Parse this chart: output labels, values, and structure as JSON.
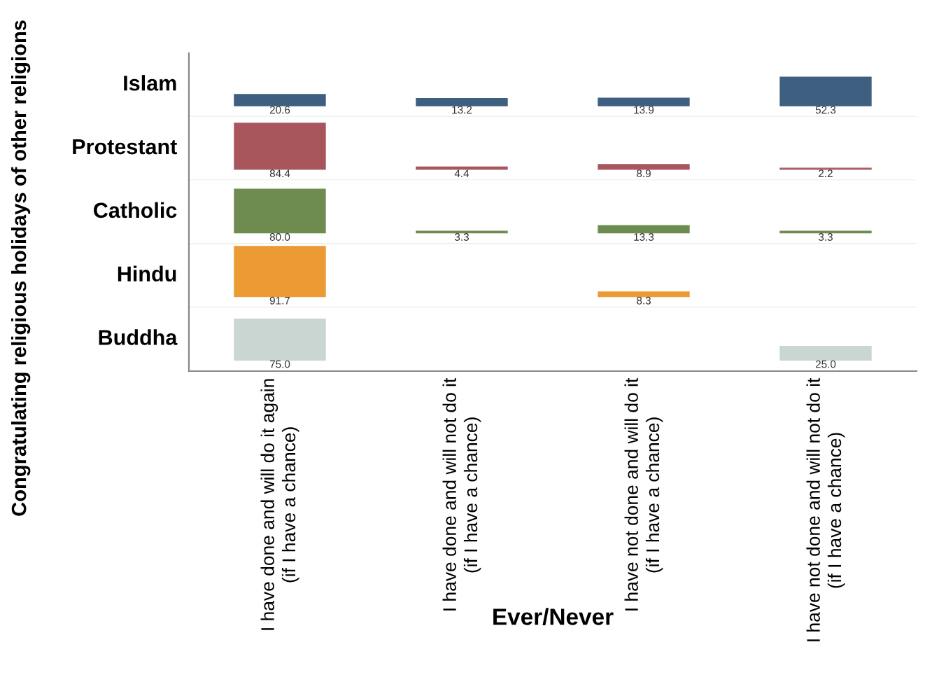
{
  "chart_data": [
    {
      "type": "bar",
      "ylabel": "Islam",
      "categories": [
        null,
        null,
        null,
        null
      ],
      "values": [
        20.6,
        13.2,
        13.9,
        52.3
      ],
      "value_labels": [
        "20.6",
        "13.2",
        "13.9",
        "52.3"
      ],
      "color": "#3e5f80",
      "tick_labels": false,
      "annotations": [
        "Congratulating religious holidays of other religions"
      ]
    },
    {
      "type": "bar",
      "ylabel": "Protestant",
      "categories": [
        null,
        null,
        null,
        null
      ],
      "values": [
        84.4,
        4.4,
        8.9,
        2.2
      ],
      "value_labels": [
        "84.4",
        "4.4",
        "8.9",
        "2.2"
      ],
      "color": "#a8565c",
      "tick_labels": false
    },
    {
      "type": "bar",
      "ylabel": "Catholic",
      "categories": [
        null,
        null,
        null,
        null
      ],
      "values": [
        80.0,
        3.3,
        13.3,
        3.3
      ],
      "value_labels": [
        "80.0",
        "3.3",
        "13.3",
        "3.3"
      ],
      "color": "#6e8c4f",
      "tick_labels": false
    },
    {
      "type": "bar",
      "ylabel": "Hindu",
      "categories": [
        null,
        null,
        null,
        null
      ],
      "values": [
        91.7,
        null,
        8.3,
        null
      ],
      "value_labels": [
        "91.7",
        null,
        "8.3",
        null
      ],
      "color": "#ec9a33",
      "tick_labels": false
    },
    {
      "type": "bar",
      "ylabel": "Buddha",
      "xlabel": "Ever/Never",
      "categories": [
        "I have done and will do it again\n(if I have a chance)",
        "I have done and will not do it\n(if I have a chance)",
        "I have not done and will do it\n(if I have a chance)",
        "I have not done and will not do it\n(if I have a chance)"
      ],
      "values": [
        75.0,
        null,
        null,
        25.0
      ],
      "value_labels": [
        "75.0",
        null,
        null,
        "25.0"
      ],
      "color": "#c9d6d2",
      "tick_labels": "x"
    }
  ]
}
